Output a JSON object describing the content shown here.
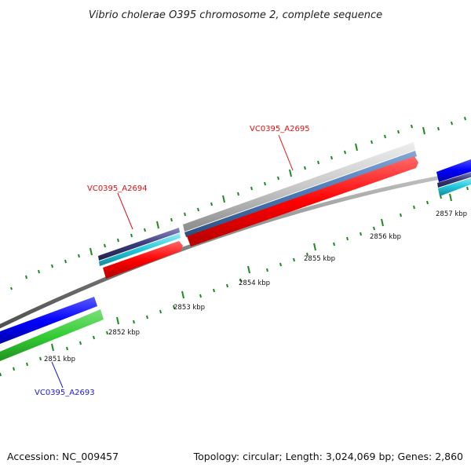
{
  "title": "Vibrio cholerae O395 chromosome 2, complete sequence",
  "footer": {
    "accession": "Accession: NC_009457",
    "summary": "Topology: circular; Length: 3,024,069 bp; Genes: 2,860"
  },
  "ticks": {
    "labels": [
      "2851 kbp",
      "2852 kbp",
      "2853 kbp",
      "2854 kbp",
      "2855 kbp",
      "2856 kbp",
      "2857 kbp"
    ]
  },
  "genes": [
    {
      "name": "VC0395_A2693",
      "strand": "-",
      "color": "#1a1ad6"
    },
    {
      "name": "VC0395_A2694",
      "strand": "+",
      "color": "#d11"
    },
    {
      "name": "VC0395_A2695",
      "strand": "+",
      "color": "#d11"
    }
  ],
  "colors": {
    "backbone": "#808080",
    "cds_forward": "#ff0000",
    "cds_reverse": "#0000ff",
    "gene_green": "#33cc33",
    "cog_gray": "#c8c8c8",
    "cog_steel": "#4a78b4",
    "cog_cyan": "#22c8dc",
    "cog_purple": "#3a3a7a",
    "tick_green": "#1f8a1f"
  }
}
